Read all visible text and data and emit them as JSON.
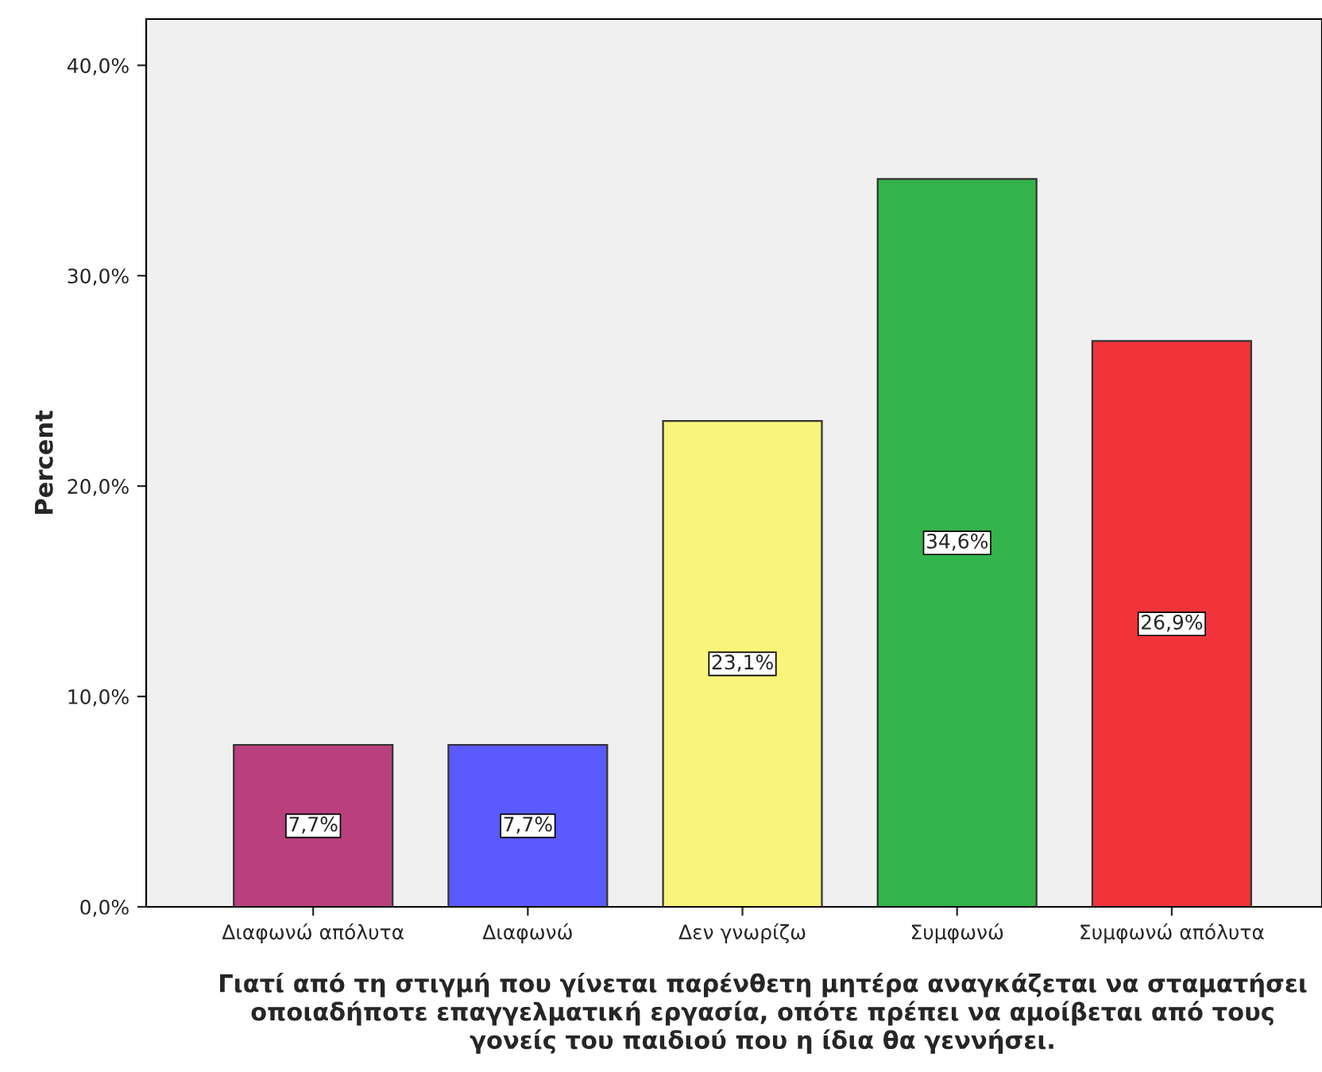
{
  "chart_data": {
    "type": "bar",
    "categories": [
      "Διαφωνώ απόλυτα",
      "Διαφωνώ",
      "Δεν γνωρίζω",
      "Συμφωνώ",
      "Συμφωνώ απόλυτα"
    ],
    "values": [
      7.7,
      7.7,
      23.1,
      34.6,
      26.9
    ],
    "colors": [
      "#b9407c",
      "#5a5aff",
      "#f9f57a",
      "#33b34b",
      "#f0343a"
    ],
    "value_labels": [
      "7,7%",
      "7,7%",
      "23,1%",
      "34,6%",
      "26,9%"
    ],
    "xlabel": "Γιατί από τη στιγμή που γίνεται παρένθετη μητέρα αναγκάζεται να σταματήσει οποιαδήποτε επαγγελματική εργασία, οπότε πρέπει να αμοίβεται από τους γονείς του παιδιού που η ίδια θα γεννήσει.",
    "ylabel": "Percent",
    "ylim": [
      0,
      42.2
    ],
    "yticks": [
      {
        "value": 0,
        "label": "0,0%"
      },
      {
        "value": 10,
        "label": "10,0%"
      },
      {
        "value": 20,
        "label": "20,0%"
      },
      {
        "value": 30,
        "label": "30,0%"
      },
      {
        "value": 40,
        "label": "40,0%"
      }
    ],
    "grid": false,
    "legend": false
  }
}
